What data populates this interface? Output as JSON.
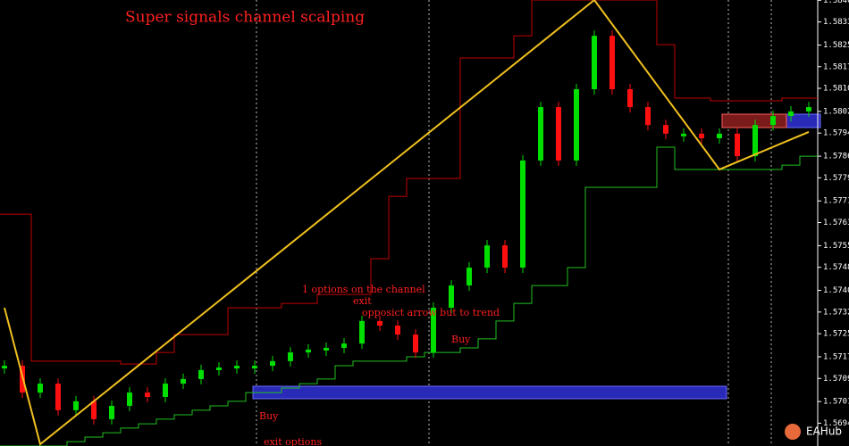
{
  "chart_data": {
    "type": "candlestick",
    "title": "Super signals channel scalping",
    "annotations": [
      "1 options on the channel",
      "exit",
      "opposict arrow but to trend",
      "Buy",
      "Buy",
      "exit options"
    ],
    "watermark": "EAHub",
    "categories": [
      null,
      null,
      null,
      null,
      null,
      null,
      null,
      null,
      null,
      null,
      null,
      null,
      null,
      null,
      null,
      null,
      null,
      null,
      null,
      null,
      null,
      null,
      null,
      null,
      null,
      null,
      null,
      null,
      null,
      null,
      null,
      null,
      null,
      null,
      null,
      null,
      null,
      null,
      null,
      null,
      null,
      null,
      null,
      null,
      null,
      null
    ],
    "close": [
      1.57139,
      1.57046,
      1.57077,
      1.56985,
      1.57016,
      1.56954,
      1.57,
      1.57046,
      1.57031,
      1.57077,
      1.57093,
      1.57124,
      1.57133,
      1.57139,
      1.57139,
      1.57155,
      1.57185,
      1.57195,
      1.57201,
      1.57216,
      1.57294,
      1.57278,
      1.57247,
      1.57185,
      1.5734,
      1.57417,
      1.57479,
      1.57556,
      1.57479,
      1.5785,
      1.58035,
      1.5785,
      1.58097,
      1.58282,
      1.58097,
      1.58035,
      1.57973,
      1.57943,
      1.57943,
      1.57927,
      1.57943,
      1.57865,
      1.57973,
      1.58004,
      1.5802,
      1.58035
    ],
    "up_color": "#00e000",
    "down_color": "#ff1010",
    "series": [
      {
        "color": "#c00000",
        "values": [
          1.57664,
          1.57664,
          1.57155,
          1.57155,
          1.57155,
          1.57155,
          1.57155,
          1.57145,
          1.57145,
          1.57185,
          1.57247,
          1.57247,
          1.57247,
          1.5734,
          1.5734,
          1.5734,
          1.57355,
          1.57355,
          1.57386,
          1.57386,
          1.57386,
          1.5751,
          1.57726,
          1.57788,
          1.57788,
          1.57788,
          1.58205,
          1.58205,
          1.58205,
          1.58282,
          1.58406,
          1.58406,
          1.58406,
          1.58406,
          1.58406,
          1.58406,
          1.58406,
          1.58251,
          1.58066,
          1.58066,
          1.58057,
          1.58057,
          1.58057,
          1.58057,
          1.58066,
          1.58066
        ]
      },
      {
        "color": "#20c020",
        "values": [
          1.56861,
          1.56861,
          1.56861,
          1.56861,
          1.56876,
          1.56892,
          1.56907,
          1.56923,
          1.56938,
          1.56954,
          1.56969,
          1.56985,
          1.57,
          1.57016,
          1.57046,
          1.57046,
          1.57062,
          1.57077,
          1.57093,
          1.57139,
          1.57155,
          1.57155,
          1.57155,
          1.5717,
          1.57185,
          1.57185,
          1.57201,
          1.57232,
          1.57294,
          1.57355,
          1.57417,
          1.57417,
          1.57479,
          1.57757,
          1.57757,
          1.57757,
          1.57757,
          1.57896,
          1.57819,
          1.57819,
          1.57819,
          1.57819,
          1.57819,
          1.57819,
          1.57834,
          1.57865
        ]
      }
    ],
    "zigzag": {
      "color": "#f0c020",
      "x": [
        0,
        2,
        33,
        40,
        45
      ],
      "values": [
        1.5734,
        1.56867,
        1.58406,
        1.57819,
        1.57949
      ]
    },
    "ylim": [
      1.56861,
      1.58406
    ],
    "yticks": [
      1.58405,
      {
        "value": 1.5833,
        "label": "1.58330"
      },
      {
        "value": 1.5825,
        "label": "1.58250"
      },
      1.58175,
      {
        "value": 1.581,
        "label": "1.58100"
      },
      {
        "value": 1.5802,
        "label": "1.58020"
      },
      1.57945,
      1.57865,
      {
        "value": 1.5779,
        "label": "1.57790"
      },
      {
        "value": 1.5771,
        "label": "1.57710"
      },
      1.57635,
      1.57555,
      {
        "value": 1.5748,
        "label": "1.57480"
      },
      {
        "value": 1.574,
        "label": "1.57400"
      },
      1.57325,
      {
        "value": 1.5725,
        "label": "1.57250"
      },
      {
        "value": 1.5717,
        "label": "1.57170"
      },
      1.57095,
      1.57015,
      {
        "value": 1.5694,
        "label": "1.56940"
      }
    ]
  }
}
